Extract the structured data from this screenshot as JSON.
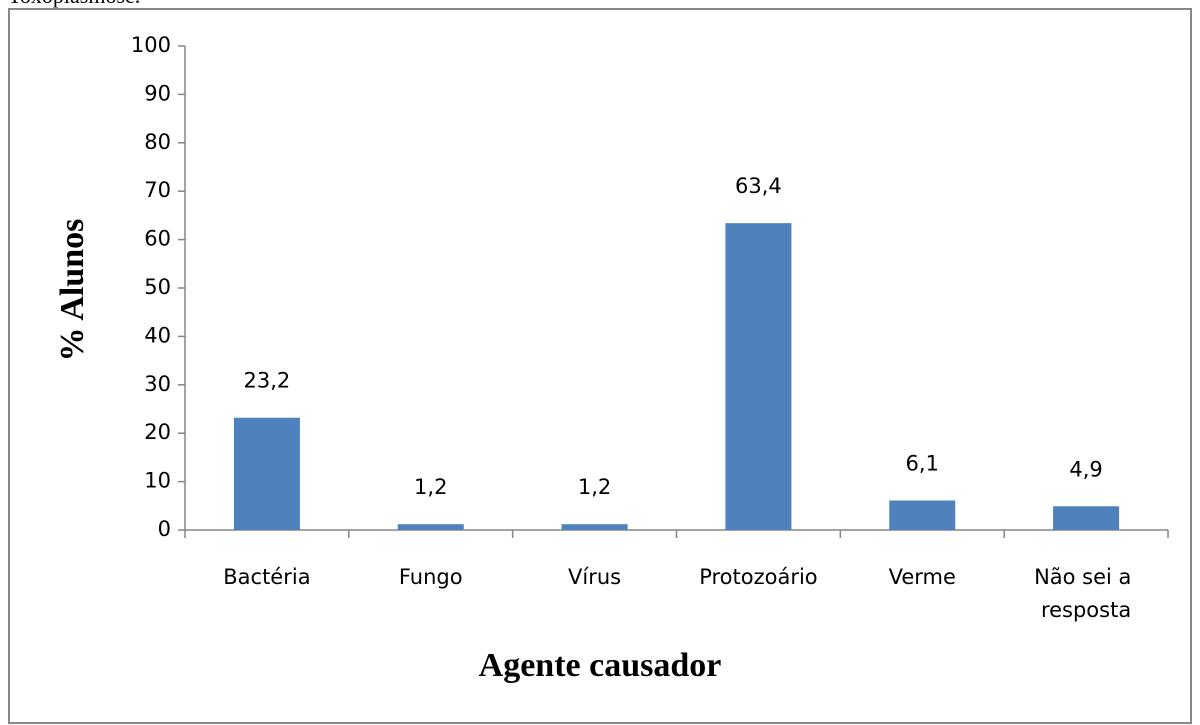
{
  "caption": "Toxoplasmose.",
  "chart_data": {
    "type": "bar",
    "x_label": "Agente causador",
    "y_label": "% Alunos",
    "categories": [
      "Bactéria",
      "Fungo",
      "Vírus",
      "Protozoário",
      "Verme",
      "Não sei a resposta"
    ],
    "values": [
      23.2,
      1.2,
      1.2,
      63.4,
      6.1,
      4.9
    ],
    "value_labels": [
      "23,2",
      "1,2",
      "1,2",
      "63,4",
      "6,1",
      "4,9"
    ],
    "color": "#4f81bd",
    "ylim": [
      0,
      100
    ],
    "yticks": [
      0,
      10,
      20,
      30,
      40,
      50,
      60,
      70,
      80,
      90,
      100
    ]
  }
}
